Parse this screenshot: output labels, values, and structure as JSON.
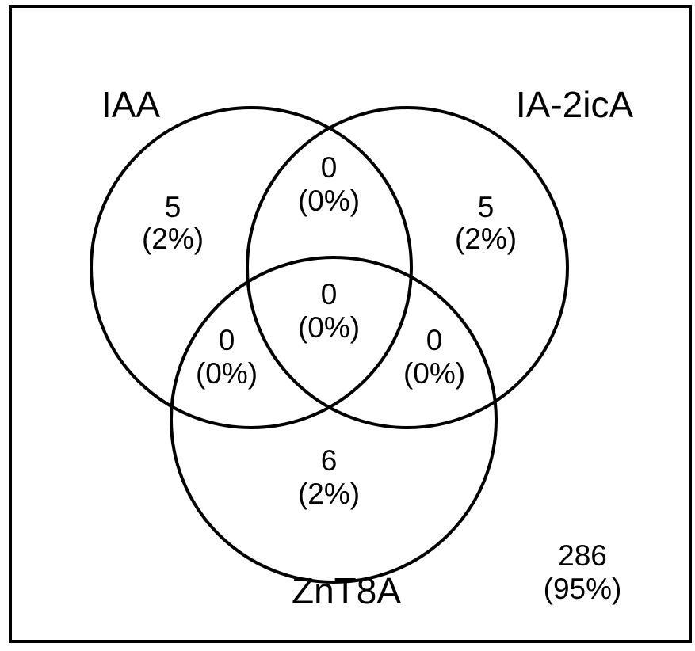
{
  "sets": [
    {
      "label": "IAA"
    },
    {
      "label": "IA-2icA"
    },
    {
      "label": "ZnT8A"
    }
  ],
  "regions": [
    {
      "count": 5,
      "percent": "(2%)"
    },
    {
      "count": 5,
      "percent": "(2%)"
    },
    {
      "count": 6,
      "percent": "(2%)"
    },
    {
      "count": 0,
      "percent": "(0%)"
    },
    {
      "count": 0,
      "percent": "(0%)"
    },
    {
      "count": 0,
      "percent": "(0%)"
    },
    {
      "count": 0,
      "percent": "(0%)"
    },
    {
      "count": 286,
      "percent": "(95%)"
    }
  ]
}
